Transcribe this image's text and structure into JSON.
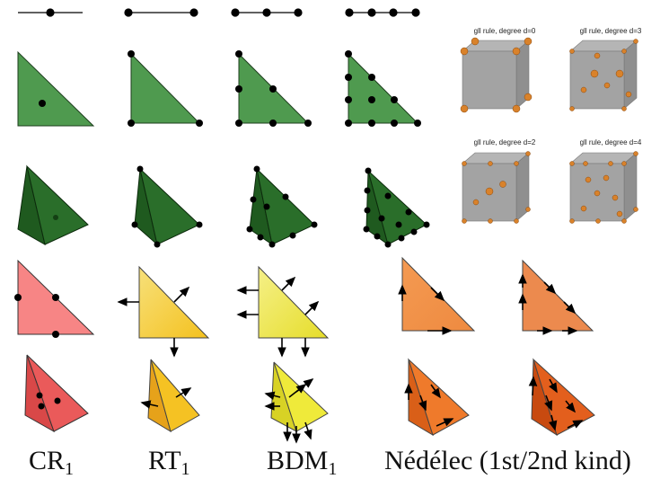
{
  "cube_titles": [
    "gll rule, degree d=0",
    "gll rule, degree d=3",
    "gll rule, degree d=2",
    "gll rule, degree d=4"
  ],
  "labels": [
    {
      "main": "CR",
      "sub": "1"
    },
    {
      "main": "RT",
      "sub": "1"
    },
    {
      "main": "BDM",
      "sub": "1"
    },
    {
      "main": "Nédélec (1st/2nd kind)"
    }
  ]
}
